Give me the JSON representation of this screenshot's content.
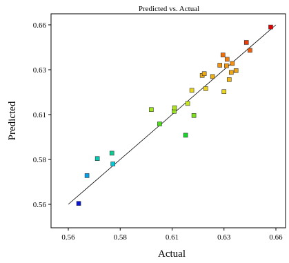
{
  "chart_data": {
    "type": "scatter",
    "title": "Predicted vs. Actual",
    "xlabel": "Actual",
    "ylabel": "Predicted",
    "xlim": [
      0.56,
      0.66
    ],
    "ylim": [
      0.56,
      0.66
    ],
    "xticks": [
      "0.56",
      "0.58",
      "0.61",
      "0.63",
      "0.66"
    ],
    "yticks": [
      "0.56",
      "0.58",
      "0.61",
      "0.63",
      "0.66"
    ],
    "grid": false,
    "reference_line": {
      "from": [
        0.56,
        0.56
      ],
      "to": [
        0.66,
        0.66
      ]
    },
    "color_scale": [
      "#0a14d8",
      "#00c8f0",
      "#18d818",
      "#e8e820",
      "#f08c10",
      "#e80000"
    ],
    "points": [
      {
        "x": 0.565,
        "y": 0.5605
      },
      {
        "x": 0.569,
        "y": 0.576
      },
      {
        "x": 0.574,
        "y": 0.5855
      },
      {
        "x": 0.581,
        "y": 0.5885
      },
      {
        "x": 0.5815,
        "y": 0.5825
      },
      {
        "x": 0.6,
        "y": 0.6128
      },
      {
        "x": 0.604,
        "y": 0.6048
      },
      {
        "x": 0.611,
        "y": 0.6118
      },
      {
        "x": 0.6112,
        "y": 0.6138
      },
      {
        "x": 0.6165,
        "y": 0.5985
      },
      {
        "x": 0.6175,
        "y": 0.6162
      },
      {
        "x": 0.6195,
        "y": 0.6235
      },
      {
        "x": 0.6205,
        "y": 0.6095
      },
      {
        "x": 0.6245,
        "y": 0.6318
      },
      {
        "x": 0.6255,
        "y": 0.6328
      },
      {
        "x": 0.6262,
        "y": 0.6245
      },
      {
        "x": 0.6295,
        "y": 0.6312
      },
      {
        "x": 0.633,
        "y": 0.6375
      },
      {
        "x": 0.6345,
        "y": 0.6432
      },
      {
        "x": 0.635,
        "y": 0.6228
      },
      {
        "x": 0.6362,
        "y": 0.6372
      },
      {
        "x": 0.6365,
        "y": 0.6408
      },
      {
        "x": 0.6375,
        "y": 0.6295
      },
      {
        "x": 0.6385,
        "y": 0.6335
      },
      {
        "x": 0.639,
        "y": 0.6385
      },
      {
        "x": 0.6408,
        "y": 0.6345
      },
      {
        "x": 0.6458,
        "y": 0.6502
      },
      {
        "x": 0.6475,
        "y": 0.6458
      },
      {
        "x": 0.6575,
        "y": 0.6588
      }
    ]
  }
}
